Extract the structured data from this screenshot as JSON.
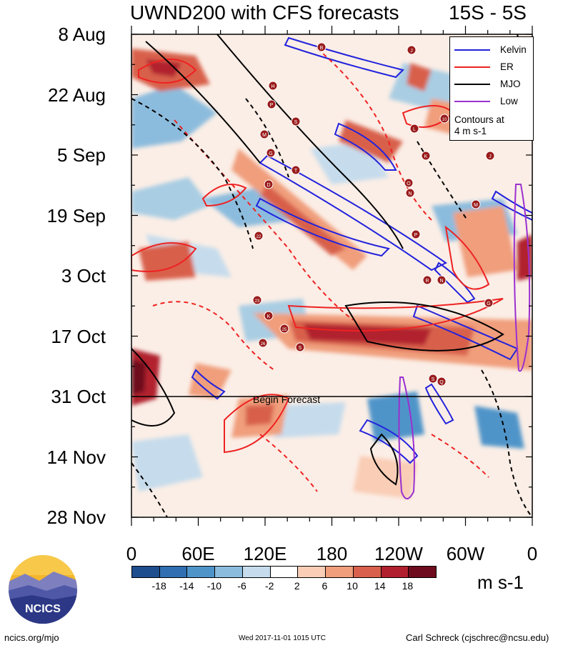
{
  "header": {
    "title": "UWND200 with CFS forecasts",
    "region": "15S - 5S"
  },
  "legend": {
    "items": [
      {
        "label": "Kelvin",
        "color": "#2222dd"
      },
      {
        "label": "ER",
        "color": "#ee2222"
      },
      {
        "label": "MJO",
        "color": "#000000"
      },
      {
        "label": "Low",
        "color": "#9b30d0"
      }
    ],
    "note_line1": "Contours at",
    "note_line2": "4 m s-1"
  },
  "chart_data": {
    "type": "heatmap",
    "title": "UWND200 with CFS forecasts",
    "subtitle": "15S - 5S",
    "x_ticks": [
      "0",
      "60E",
      "120E",
      "180",
      "120W",
      "60W",
      "0"
    ],
    "y_ticks": [
      "8 Aug",
      "22 Aug",
      "5 Sep",
      "19 Sep",
      "3 Oct",
      "17 Oct",
      "31 Oct",
      "14 Nov",
      "28 Nov"
    ],
    "forecast_start": "31 Oct",
    "forecast_label": "Begin Forecast",
    "colorbar": {
      "levels": [
        "-18",
        "-14",
        "-10",
        "-6",
        "-2",
        "2",
        "6",
        "10",
        "14",
        "18"
      ],
      "colors": [
        "#1f4e8f",
        "#2f6fb2",
        "#4f94c9",
        "#8cbcdd",
        "#c6dcec",
        "#ffffff",
        "#f9cdb6",
        "#f09e7c",
        "#d8604c",
        "#b1202e",
        "#6e0b1e"
      ],
      "units": "m s-1"
    },
    "storm_labels": [
      "B",
      "J",
      "H",
      "P",
      "S",
      "M",
      "G",
      "T",
      "D",
      "10",
      "L",
      "K",
      "J",
      "O",
      "N",
      "M",
      "22",
      "P",
      "R",
      "N",
      "G",
      "23",
      "K",
      "25",
      "26",
      "S",
      "S",
      "Q"
    ]
  },
  "footer": {
    "left": "ncics.org/mjo",
    "center": "Wed 2017-11-01 1015 UTC",
    "right": "Carl Schreck (cjschrec@ncsu.edu)",
    "logo_text": "NCICS"
  }
}
